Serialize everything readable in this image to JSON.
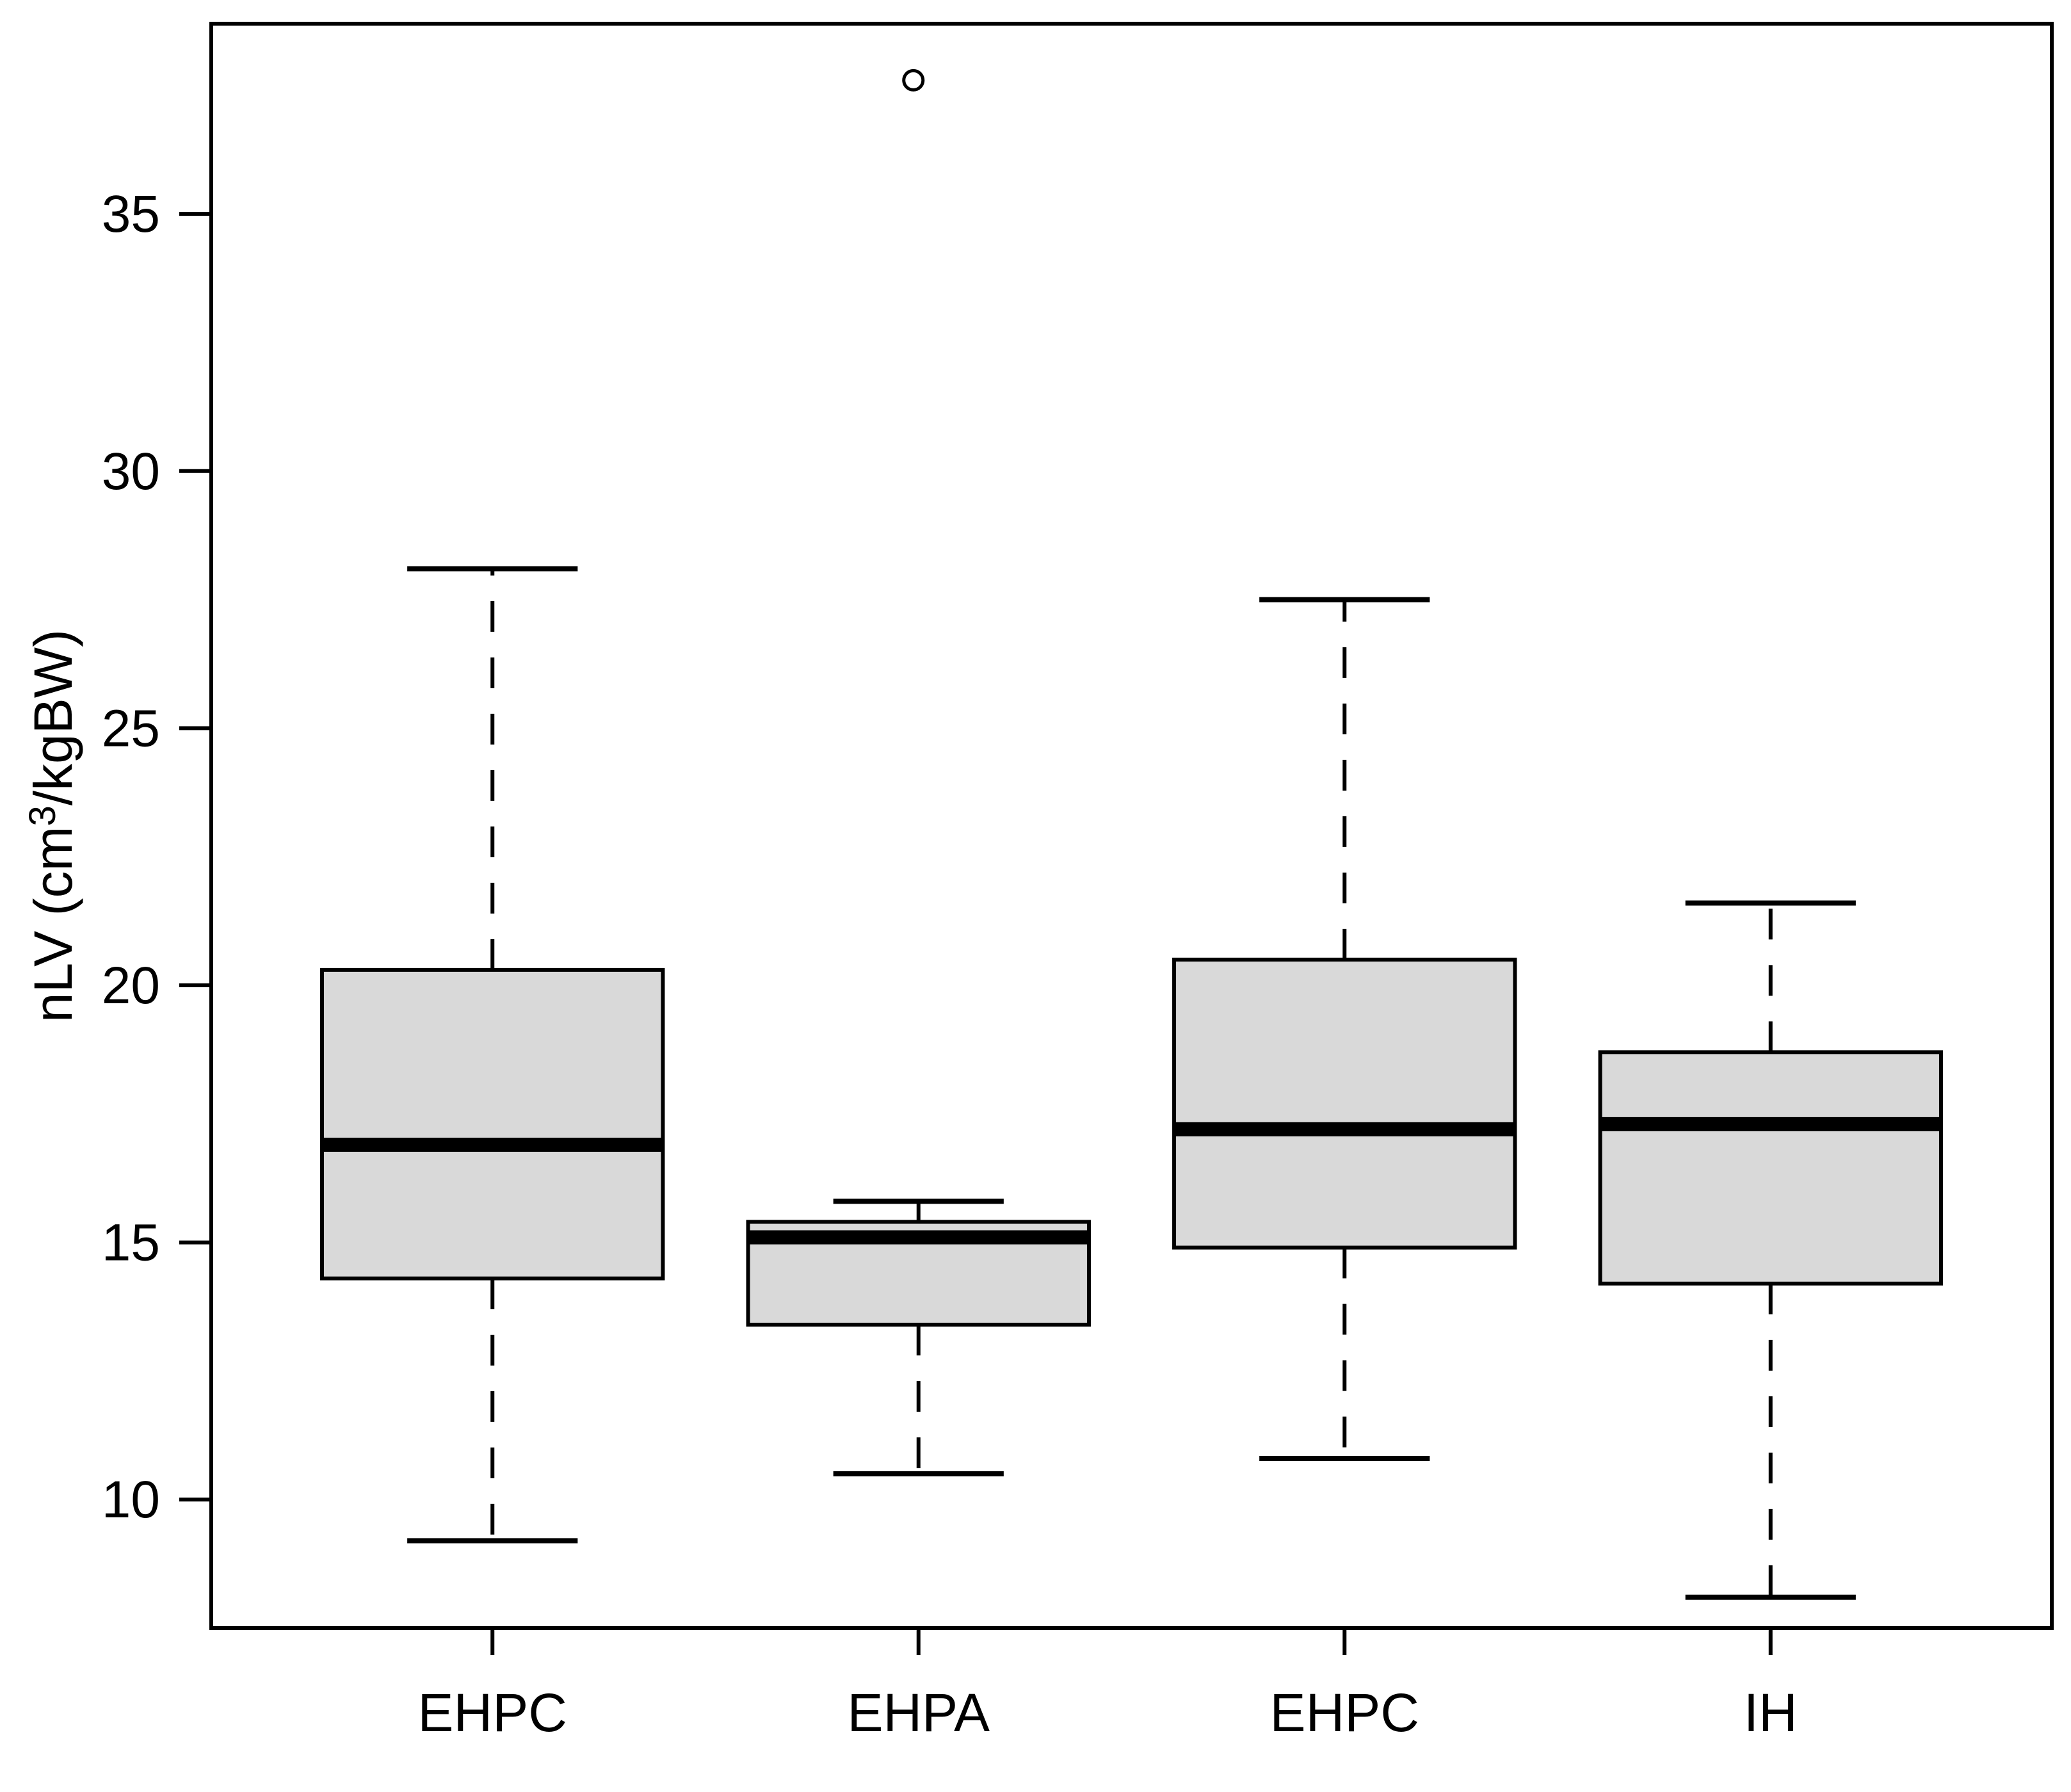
{
  "figure": {
    "background": "#ffffff",
    "line_color": "#000000",
    "box_fill": "#d9d9d9"
  },
  "chart_data": {
    "type": "boxplot",
    "title": "",
    "xlabel": "",
    "ylabel": "nLV (cm³/kgBW)",
    "categories": [
      "EHPC",
      "EHPA",
      "EHPC",
      "IH"
    ],
    "y_ticks": [
      10,
      15,
      20,
      25,
      30,
      35
    ],
    "ylim": [
      7.5,
      38.7
    ],
    "grid": false,
    "legend": "none",
    "series": [
      {
        "name": "EHPC",
        "whisker_low": 9.2,
        "q1": 14.3,
        "median": 16.9,
        "q3": 20.3,
        "whisker_high": 28.1,
        "outliers": []
      },
      {
        "name": "EHPA",
        "whisker_low": 10.5,
        "q1": 13.4,
        "median": 15.1,
        "q3": 15.4,
        "whisker_high": 15.8,
        "outliers": [
          37.6
        ]
      },
      {
        "name": "EHPC",
        "whisker_low": 10.8,
        "q1": 14.9,
        "median": 17.2,
        "q3": 20.5,
        "whisker_high": 27.5,
        "outliers": []
      },
      {
        "name": "IH",
        "whisker_low": 8.1,
        "q1": 14.2,
        "median": 17.3,
        "q3": 18.7,
        "whisker_high": 21.6,
        "outliers": []
      }
    ]
  }
}
